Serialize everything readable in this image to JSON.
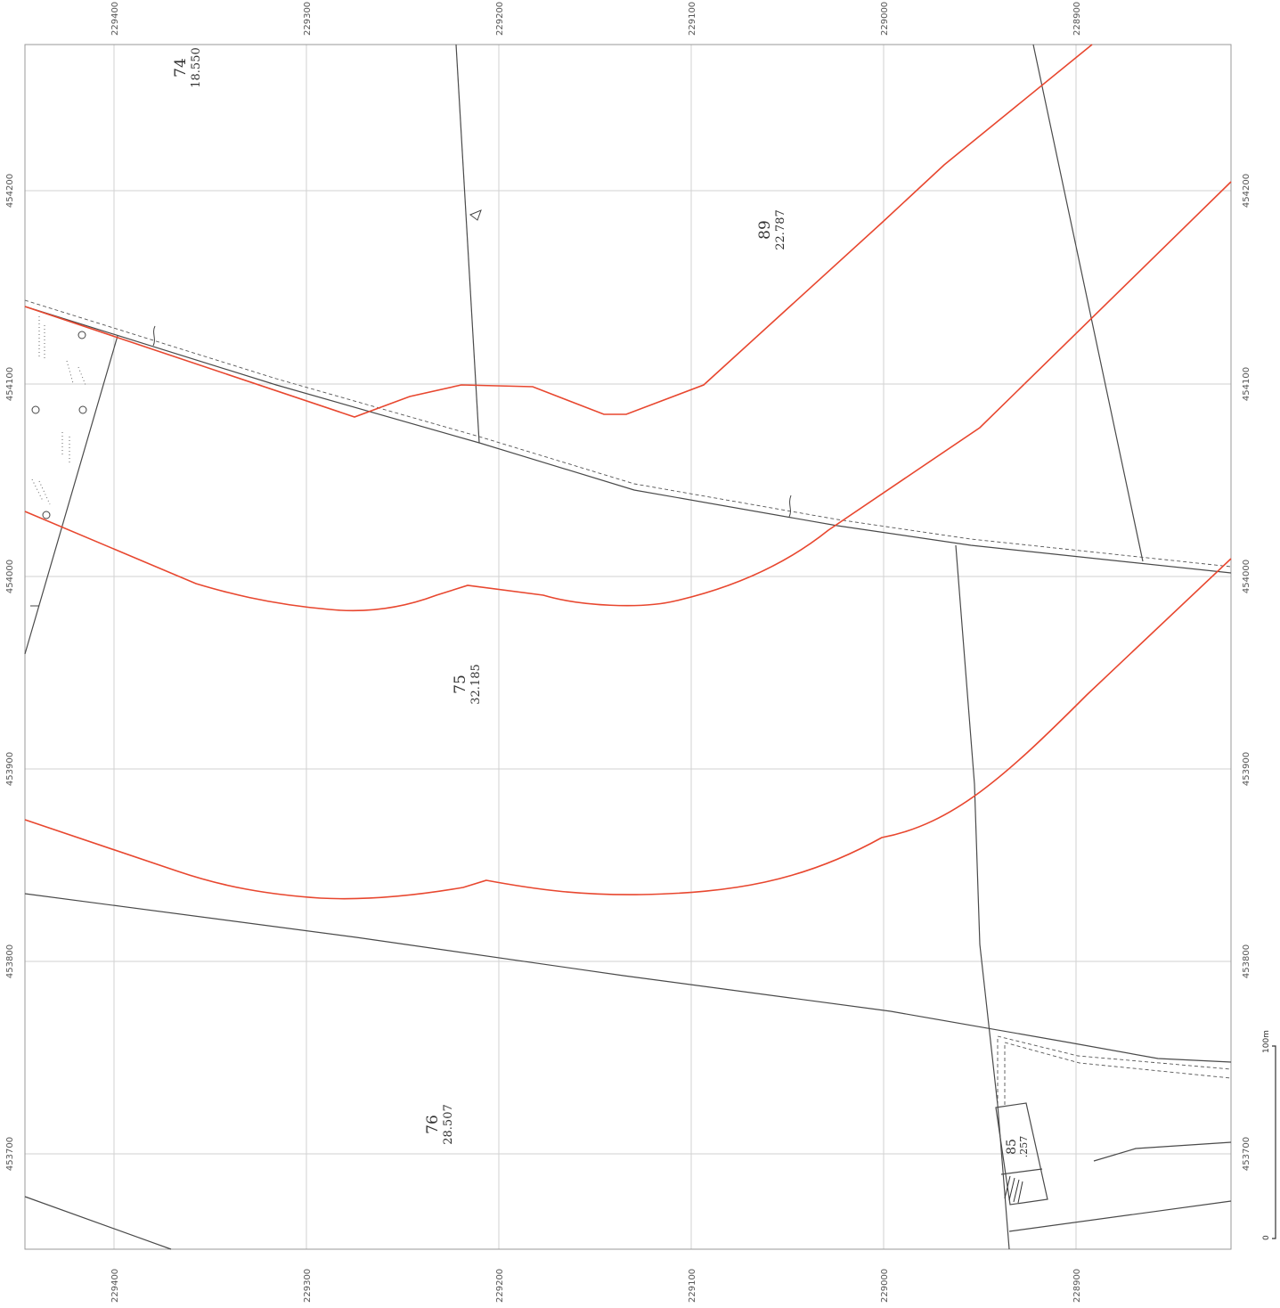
{
  "grid": {
    "x_labels": [
      "229400",
      "229300",
      "229200",
      "229100",
      "229000",
      "228900"
    ],
    "y_labels": [
      "454200",
      "454100",
      "454000",
      "453900",
      "453800",
      "453700"
    ]
  },
  "parcels": [
    {
      "number": "74",
      "area": "18.550"
    },
    {
      "number": "89",
      "area": "22.787"
    },
    {
      "number": "75",
      "area": "32.185"
    },
    {
      "number": "76",
      "area": "28.507"
    },
    {
      "number": "85",
      "area": ".257"
    }
  ],
  "scale": {
    "zero": "0",
    "max": "100m"
  },
  "colors": {
    "red_line": "#e8472f",
    "boundary": "#4a4a4a",
    "grid": "#d2d2d2"
  },
  "symbols": [
    "triangle-marker-icon",
    "tree-icon",
    "hatched-area-icon"
  ]
}
